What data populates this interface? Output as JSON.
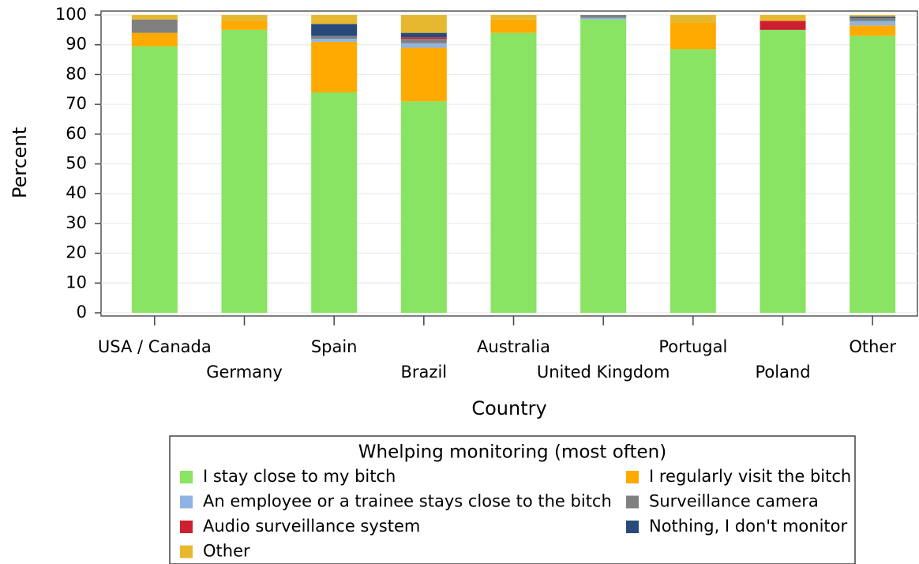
{
  "chart_data": {
    "type": "bar",
    "stacked": true,
    "x_label": "Country",
    "y_label": "Percent",
    "legend_title": "Whelping monitoring (most often)",
    "categories": [
      "USA / Canada",
      "Germany",
      "Spain",
      "Brazil",
      "Australia",
      "United Kingdom",
      "Portugal",
      "Poland",
      "Other"
    ],
    "series": [
      {
        "name": "I stay close to my bitch",
        "color": "#88e462",
        "values": [
          89.5,
          95,
          74,
          71,
          94,
          98.5,
          88.5,
          95,
          93
        ]
      },
      {
        "name": "I regularly visit the bitch",
        "color": "#ffaa00",
        "values": [
          4.5,
          3,
          17,
          18,
          4.5,
          0,
          9,
          0,
          3.5
        ]
      },
      {
        "name": "An employee or a trainee stays close to the bitch",
        "color": "#8fb3e3",
        "values": [
          0,
          0,
          1,
          1.5,
          0,
          0.5,
          0,
          0,
          1.5
        ]
      },
      {
        "name": "Surveillance camera",
        "color": "#808080",
        "values": [
          4.5,
          0,
          1,
          1.5,
          0,
          1,
          0,
          0,
          1
        ]
      },
      {
        "name": "Audio surveillance system",
        "color": "#cc1f2f",
        "values": [
          0,
          0,
          0,
          0.5,
          0,
          0,
          0,
          3,
          0
        ]
      },
      {
        "name": "Nothing, I don't monitor",
        "color": "#274a7b",
        "values": [
          0,
          0,
          4,
          1.5,
          0,
          0,
          0,
          0,
          0.5
        ]
      },
      {
        "name": "Other",
        "color": "#e6b830",
        "values": [
          1.5,
          2,
          3,
          6,
          1.5,
          0,
          2.5,
          2,
          0.5
        ]
      }
    ],
    "ylim": [
      0,
      100
    ],
    "yticks": [
      0,
      10,
      20,
      30,
      40,
      50,
      60,
      70,
      80,
      90,
      100
    ],
    "grid": true
  }
}
